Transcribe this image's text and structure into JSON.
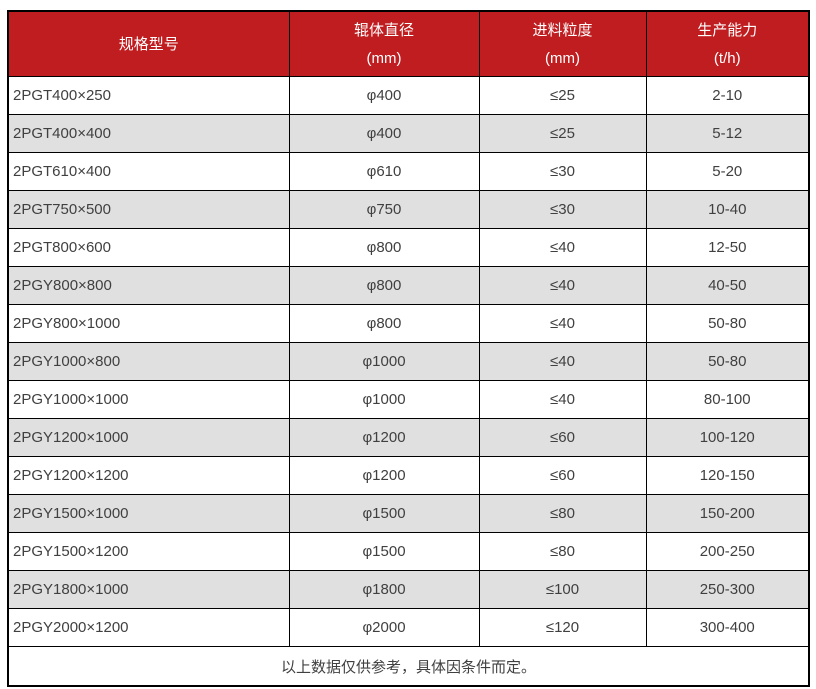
{
  "theme": {
    "header_bg": "#C01D20",
    "header_text": "#FFFFFF",
    "row_bg": "#FFFFFF",
    "row_alt_bg": "#E0E0E0",
    "body_text": "#404040",
    "border": "#000000"
  },
  "table": {
    "columns": [
      {
        "label": "规格型号",
        "unit": ""
      },
      {
        "label": "辊体直径",
        "unit": "(mm)"
      },
      {
        "label": "进料粒度",
        "unit": "(mm)"
      },
      {
        "label": "生产能力",
        "unit": "(t/h)"
      }
    ],
    "rows": [
      {
        "model": "2PGT400×250",
        "diameter": "φ400",
        "feed": "≤25",
        "capacity": "2-10"
      },
      {
        "model": "2PGT400×400",
        "diameter": "φ400",
        "feed": "≤25",
        "capacity": "5-12"
      },
      {
        "model": "2PGT610×400",
        "diameter": "φ610",
        "feed": "≤30",
        "capacity": "5-20"
      },
      {
        "model": "2PGT750×500",
        "diameter": "φ750",
        "feed": "≤30",
        "capacity": "10-40"
      },
      {
        "model": "2PGT800×600",
        "diameter": "φ800",
        "feed": "≤40",
        "capacity": "12-50"
      },
      {
        "model": "2PGY800×800",
        "diameter": "φ800",
        "feed": "≤40",
        "capacity": "40-50"
      },
      {
        "model": "2PGY800×1000",
        "diameter": "φ800",
        "feed": "≤40",
        "capacity": "50-80"
      },
      {
        "model": "2PGY1000×800",
        "diameter": "φ1000",
        "feed": "≤40",
        "capacity": "50-80"
      },
      {
        "model": "2PGY1000×1000",
        "diameter": "φ1000",
        "feed": "≤40",
        "capacity": "80-100"
      },
      {
        "model": "2PGY1200×1000",
        "diameter": "φ1200",
        "feed": "≤60",
        "capacity": "100-120"
      },
      {
        "model": "2PGY1200×1200",
        "diameter": "φ1200",
        "feed": "≤60",
        "capacity": "120-150"
      },
      {
        "model": "2PGY1500×1000",
        "diameter": "φ1500",
        "feed": "≤80",
        "capacity": "150-200"
      },
      {
        "model": "2PGY1500×1200",
        "diameter": "φ1500",
        "feed": "≤80",
        "capacity": "200-250"
      },
      {
        "model": "2PGY1800×1000",
        "diameter": "φ1800",
        "feed": "≤100",
        "capacity": "250-300"
      },
      {
        "model": "2PGY2000×1200",
        "diameter": "φ2000",
        "feed": "≤120",
        "capacity": "300-400"
      }
    ],
    "footer_note": "以上数据仅供参考，具体因条件而定。"
  },
  "chart_data": {
    "type": "table",
    "title": "",
    "columns": [
      "规格型号",
      "辊体直径 (mm)",
      "进料粒度 (mm)",
      "生产能力 (t/h)"
    ],
    "rows": [
      [
        "2PGT400×250",
        "φ400",
        "≤25",
        "2-10"
      ],
      [
        "2PGT400×400",
        "φ400",
        "≤25",
        "5-12"
      ],
      [
        "2PGT610×400",
        "φ610",
        "≤30",
        "5-20"
      ],
      [
        "2PGT750×500",
        "φ750",
        "≤30",
        "10-40"
      ],
      [
        "2PGT800×600",
        "φ800",
        "≤40",
        "12-50"
      ],
      [
        "2PGY800×800",
        "φ800",
        "≤40",
        "40-50"
      ],
      [
        "2PGY800×1000",
        "φ800",
        "≤40",
        "50-80"
      ],
      [
        "2PGY1000×800",
        "φ1000",
        "≤40",
        "50-80"
      ],
      [
        "2PGY1000×1000",
        "φ1000",
        "≤40",
        "80-100"
      ],
      [
        "2PGY1200×1000",
        "φ1200",
        "≤60",
        "100-120"
      ],
      [
        "2PGY1200×1200",
        "φ1200",
        "≤60",
        "120-150"
      ],
      [
        "2PGY1500×1000",
        "φ1500",
        "≤80",
        "150-200"
      ],
      [
        "2PGY1500×1200",
        "φ1500",
        "≤80",
        "200-250"
      ],
      [
        "2PGY1800×1000",
        "φ1800",
        "≤100",
        "250-300"
      ],
      [
        "2PGY2000×1200",
        "φ2000",
        "≤120",
        "300-400"
      ]
    ],
    "footnote": "以上数据仅供参考，具体因条件而定。"
  }
}
